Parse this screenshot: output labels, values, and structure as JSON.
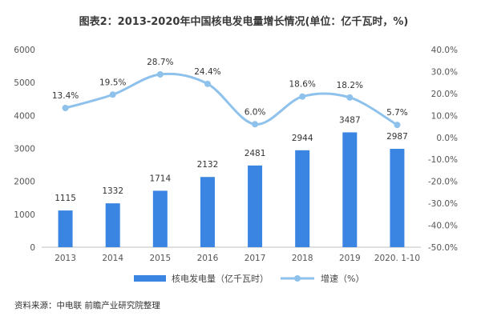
{
  "chart_data": {
    "type": "bar",
    "title": "图表2：2013-2020年中国核电发电量增长情况(单位：亿千瓦时，%)",
    "categories": [
      "2013",
      "2014",
      "2015",
      "2016",
      "2017",
      "2018",
      "2019",
      "2020. 1-10"
    ],
    "series": [
      {
        "name": "核电发电量（亿千瓦时）",
        "type": "bar",
        "axis": "left",
        "color": "#3a84e2",
        "values": [
          1115,
          1332,
          1714,
          2132,
          2481,
          2944,
          3487,
          2987
        ],
        "labels": [
          "1115",
          "1332",
          "1714",
          "2132",
          "2481",
          "2944",
          "3487",
          "2987"
        ]
      },
      {
        "name": "增速（%）",
        "type": "line",
        "axis": "right",
        "color": "#8ec2ec",
        "values": [
          13.4,
          19.5,
          28.7,
          24.4,
          6.0,
          18.6,
          18.2,
          5.7
        ],
        "labels": [
          "13.4%",
          "19.5%",
          "28.7%",
          "24.4%",
          "6.0%",
          "18.6%",
          "18.2%",
          "5.7%"
        ]
      }
    ],
    "y_left": {
      "range": [
        0,
        6000
      ],
      "ticks": [
        0,
        1000,
        2000,
        3000,
        4000,
        5000,
        6000
      ],
      "tick_labels": [
        "0",
        "1000",
        "2000",
        "3000",
        "4000",
        "5000",
        "6000"
      ]
    },
    "y_right": {
      "range": [
        -50,
        40
      ],
      "ticks": [
        40,
        30,
        20,
        10,
        0,
        -10,
        -20,
        -30,
        -40,
        -50
      ],
      "tick_labels": [
        "40.0%",
        "30.0%",
        "20.0%",
        "10.0%",
        "0.0%",
        "-10.0%",
        "-20.0%",
        "-30.0%",
        "-40.0%",
        "-50.0%"
      ]
    },
    "grid": false,
    "legend": {
      "position": "bottom",
      "items": [
        "核电发电量（亿千瓦时）",
        "增速（%）"
      ]
    },
    "source": "资料来源：中电联 前瞻产业研究院整理"
  }
}
